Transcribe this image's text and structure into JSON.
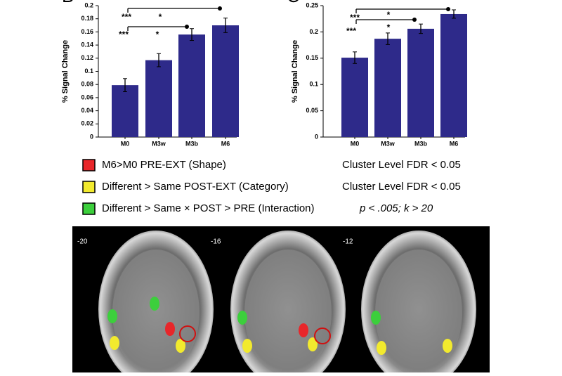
{
  "chart_data": [
    {
      "type": "bar",
      "panel": "B",
      "ylabel": "% Signal Change",
      "categories": [
        "M0",
        "M3w",
        "M3b",
        "M6"
      ],
      "values": [
        0.079,
        0.117,
        0.156,
        0.17
      ],
      "errors": [
        0.01,
        0.01,
        0.009,
        0.011
      ],
      "color": "#2e2a8a",
      "ylim": [
        0,
        0.2
      ],
      "yticks": [
        0,
        0.02,
        0.04,
        0.06,
        0.08,
        0.1,
        0.12,
        0.14,
        0.16,
        0.18,
        0.2
      ],
      "annotations": [
        "***",
        "*",
        "***",
        "*"
      ]
    },
    {
      "type": "bar",
      "panel": "C",
      "ylabel": "% Signal Change",
      "categories": [
        "M0",
        "M3w",
        "M3b",
        "M6"
      ],
      "values": [
        0.151,
        0.187,
        0.206,
        0.234
      ],
      "errors": [
        0.011,
        0.011,
        0.009,
        0.008
      ],
      "color": "#2e2a8a",
      "ylim": [
        0,
        0.25
      ],
      "yticks": [
        0,
        0.05,
        0.1,
        0.15,
        0.2,
        0.25
      ],
      "annotations": [
        "***",
        "*",
        "***",
        "*"
      ]
    }
  ],
  "legend": [
    {
      "color": "#e8262a",
      "label": "M6>M0 PRE-EXT (Shape)",
      "threshold": "Cluster Level FDR < 0.05"
    },
    {
      "color": "#f2ea2e",
      "label": "Different > Same POST-EXT (Category)",
      "threshold": "Cluster Level FDR < 0.05"
    },
    {
      "color": "#3ccf3c",
      "label": "Different > Same × POST > PRE (Interaction)",
      "threshold": "p < .005; k > 20"
    }
  ],
  "brain_slices": [
    "-20",
    "-16",
    "-12"
  ]
}
